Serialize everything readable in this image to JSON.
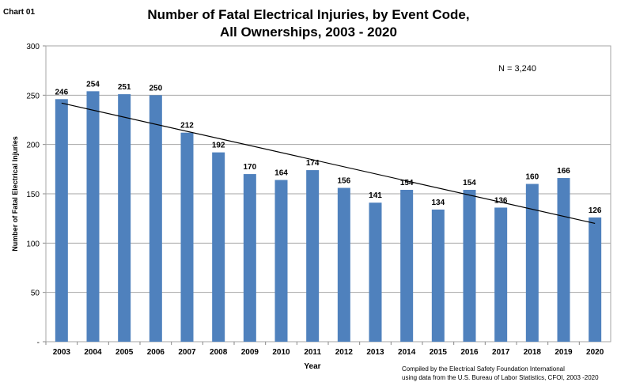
{
  "chart_label": "Chart 01",
  "chart_data": {
    "type": "bar",
    "title_lines": [
      "Number of Fatal Electrical Injuries, by Event Code,",
      "All Ownerships, 2003 - 2020"
    ],
    "xlabel": "Year",
    "ylabel": "Number of Fatal Electrical Injuries",
    "categories": [
      "2003",
      "2004",
      "2005",
      "2006",
      "2007",
      "2008",
      "2009",
      "2010",
      "2011",
      "2012",
      "2013",
      "2014",
      "2015",
      "2016",
      "2017",
      "2018",
      "2019",
      "2020"
    ],
    "values": [
      246,
      254,
      251,
      250,
      212,
      192,
      170,
      164,
      174,
      156,
      141,
      154,
      134,
      154,
      136,
      160,
      166,
      126
    ],
    "ylim": [
      0,
      300
    ],
    "yticks": [
      0,
      50,
      100,
      150,
      200,
      250,
      300
    ],
    "ytick_labels": [
      "-",
      "50",
      "100",
      "150",
      "200",
      "250",
      "300"
    ],
    "grid": true,
    "trendline": {
      "type": "linear",
      "start": 242,
      "end": 120
    },
    "annotation": "N = 3,240",
    "bar_color": "#4f81bd",
    "trend_color": "#000000"
  },
  "credit": [
    "Compiled by the Electrical Safety Foundation International",
    "using data from the U.S. Bureau of Labor Statistics, CFOI, 2003 -2020"
  ]
}
